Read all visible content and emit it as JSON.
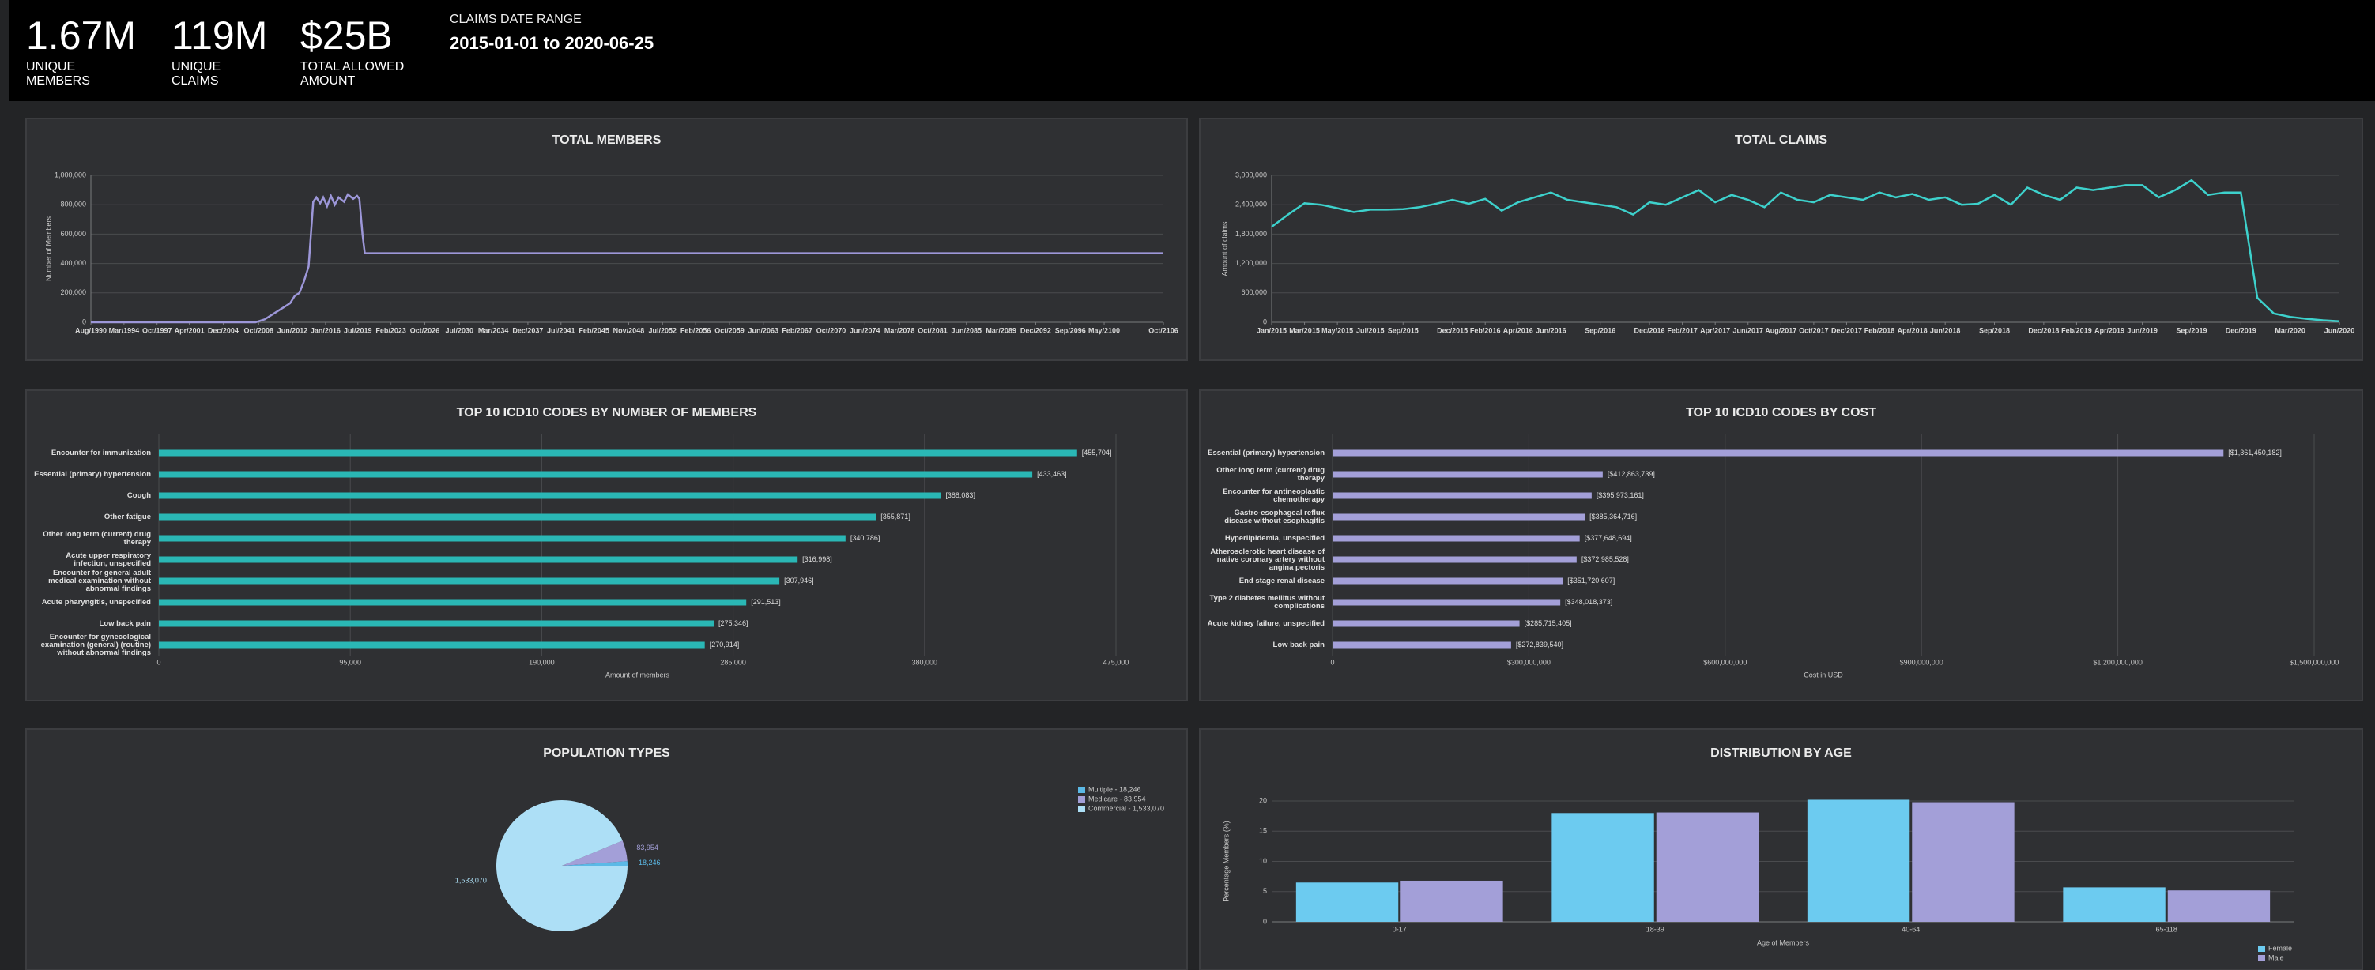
{
  "header": {
    "kpis": [
      {
        "value": "1.67M",
        "label": "UNIQUE MEMBERS"
      },
      {
        "value": "119M",
        "label": "UNIQUE CLAIMS"
      },
      {
        "value": "$25B",
        "label": "TOTAL ALLOWED AMOUNT"
      }
    ],
    "date_range": {
      "label": "CLAIMS DATE RANGE",
      "value": "2015-01-01 to 2020-06-25"
    }
  },
  "chart_data": [
    {
      "type": "line",
      "title": "TOTAL MEMBERS",
      "ylabel": "Number of Members",
      "color": "#9d97d9",
      "grid": true,
      "x": [
        "1990-08",
        "2008-06",
        "2009-06",
        "2010-06",
        "2011-06",
        "2012-03",
        "2012-09",
        "2013-03",
        "2013-09",
        "2014-03",
        "2014-06",
        "2014-09",
        "2015-01",
        "2015-06",
        "2015-10",
        "2016-03",
        "2016-08",
        "2017-01",
        "2017-06",
        "2018-01",
        "2018-06",
        "2019-01",
        "2019-06",
        "2019-09",
        "2020-01",
        "2020-04",
        "2106-10"
      ],
      "values": [
        0,
        0,
        20000,
        60000,
        100000,
        130000,
        180000,
        200000,
        280000,
        380000,
        600000,
        820000,
        850000,
        810000,
        850000,
        790000,
        860000,
        800000,
        850000,
        820000,
        870000,
        840000,
        860000,
        840000,
        600000,
        470000,
        470000
      ],
      "xlim": [
        "1990-08",
        "2106-10"
      ],
      "xticks": [
        {
          "value": "1990-08",
          "label": "Aug/1990"
        },
        {
          "value": "1994-03",
          "label": "Mar/1994"
        },
        {
          "value": "1997-10",
          "label": "Oct/1997"
        },
        {
          "value": "2001-04",
          "label": "Apr/2001"
        },
        {
          "value": "2004-12",
          "label": "Dec/2004"
        },
        {
          "value": "2008-10",
          "label": "Oct/2008"
        },
        {
          "value": "2012-06",
          "label": "Jun/2012"
        },
        {
          "value": "2016-01",
          "label": "Jan/2016"
        },
        {
          "value": "2019-07",
          "label": "Jul/2019"
        },
        {
          "value": "2023-02",
          "label": "Feb/2023"
        },
        {
          "value": "2026-10",
          "label": "Oct/2026"
        },
        {
          "value": "2030-07",
          "label": "Jul/2030"
        },
        {
          "value": "2034-03",
          "label": "Mar/2034"
        },
        {
          "value": "2037-12",
          "label": "Dec/2037"
        },
        {
          "value": "2041-07",
          "label": "Jul/2041"
        },
        {
          "value": "2045-02",
          "label": "Feb/2045"
        },
        {
          "value": "2048-11",
          "label": "Nov/2048"
        },
        {
          "value": "2052-07",
          "label": "Jul/2052"
        },
        {
          "value": "2056-02",
          "label": "Feb/2056"
        },
        {
          "value": "2059-10",
          "label": "Oct/2059"
        },
        {
          "value": "2063-06",
          "label": "Jun/2063"
        },
        {
          "value": "2067-02",
          "label": "Feb/2067"
        },
        {
          "value": "2070-10",
          "label": "Oct/2070"
        },
        {
          "value": "2074-06",
          "label": "Jun/2074"
        },
        {
          "value": "2078-03",
          "label": "Mar/2078"
        },
        {
          "value": "2081-10",
          "label": "Oct/2081"
        },
        {
          "value": "2085-06",
          "label": "Jun/2085"
        },
        {
          "value": "2089-03",
          "label": "Mar/2089"
        },
        {
          "value": "2092-12",
          "label": "Dec/2092"
        },
        {
          "value": "2096-09",
          "label": "Sep/2096"
        },
        {
          "value": "2100-05",
          "label": "May/2100"
        },
        {
          "value": "2106-10",
          "label": "Oct/2106"
        }
      ],
      "ylim": [
        0,
        1000000
      ],
      "yticks": [
        0,
        {
          "value": 200000,
          "label": "200,000"
        },
        {
          "value": 400000,
          "label": "400,000"
        },
        {
          "value": 600000,
          "label": "600,000"
        },
        {
          "value": 800000,
          "label": "800,000"
        },
        {
          "value": 1000000,
          "label": "1,000,000"
        }
      ]
    },
    {
      "type": "line",
      "title": "TOTAL CLAIMS",
      "ylabel": "Amount of claims",
      "color": "#3dd1cc",
      "grid": true,
      "x": [
        "2015-01",
        "2015-02",
        "2015-03",
        "2015-04",
        "2015-05",
        "2015-06",
        "2015-07",
        "2015-08",
        "2015-09",
        "2015-10",
        "2015-11",
        "2015-12",
        "2016-01",
        "2016-02",
        "2016-03",
        "2016-04",
        "2016-05",
        "2016-06",
        "2016-07",
        "2016-08",
        "2016-09",
        "2016-10",
        "2016-11",
        "2016-12",
        "2017-01",
        "2017-02",
        "2017-03",
        "2017-04",
        "2017-05",
        "2017-06",
        "2017-07",
        "2017-08",
        "2017-09",
        "2017-10",
        "2017-11",
        "2017-12",
        "2018-01",
        "2018-02",
        "2018-03",
        "2018-04",
        "2018-05",
        "2018-06",
        "2018-07",
        "2018-08",
        "2018-09",
        "2018-10",
        "2018-11",
        "2018-12",
        "2019-01",
        "2019-02",
        "2019-03",
        "2019-04",
        "2019-05",
        "2019-06",
        "2019-07",
        "2019-08",
        "2019-09",
        "2019-10",
        "2019-11",
        "2019-12",
        "2020-01",
        "2020-02",
        "2020-03",
        "2020-04",
        "2020-05",
        "2020-06"
      ],
      "values": [
        1950000,
        2200000,
        2430000,
        2400000,
        2330000,
        2250000,
        2300000,
        2300000,
        2310000,
        2350000,
        2420000,
        2500000,
        2420000,
        2520000,
        2280000,
        2450000,
        2550000,
        2650000,
        2500000,
        2450000,
        2400000,
        2350000,
        2200000,
        2450000,
        2400000,
        2550000,
        2700000,
        2450000,
        2600000,
        2500000,
        2350000,
        2650000,
        2500000,
        2450000,
        2600000,
        2550000,
        2500000,
        2650000,
        2550000,
        2620000,
        2500000,
        2550000,
        2400000,
        2420000,
        2600000,
        2400000,
        2750000,
        2600000,
        2500000,
        2750000,
        2700000,
        2750000,
        2800000,
        2800000,
        2550000,
        2700000,
        2900000,
        2600000,
        2650000,
        2650000,
        500000,
        180000,
        110000,
        70000,
        40000,
        20000
      ],
      "xlim": [
        "2015-01",
        "2020-06"
      ],
      "xticks": [
        {
          "value": "2015-01",
          "label": "Jan/2015"
        },
        {
          "value": "2015-03",
          "label": "Mar/2015"
        },
        {
          "value": "2015-05",
          "label": "May/2015"
        },
        {
          "value": "2015-07",
          "label": "Jul/2015"
        },
        {
          "value": "2015-09",
          "label": "Sep/2015"
        },
        {
          "value": "2015-12",
          "label": "Dec/2015"
        },
        {
          "value": "2016-02",
          "label": "Feb/2016"
        },
        {
          "value": "2016-04",
          "label": "Apr/2016"
        },
        {
          "value": "2016-06",
          "label": "Jun/2016"
        },
        {
          "value": "2016-09",
          "label": "Sep/2016"
        },
        {
          "value": "2016-12",
          "label": "Dec/2016"
        },
        {
          "value": "2017-02",
          "label": "Feb/2017"
        },
        {
          "value": "2017-04",
          "label": "Apr/2017"
        },
        {
          "value": "2017-06",
          "label": "Jun/2017"
        },
        {
          "value": "2017-08",
          "label": "Aug/2017"
        },
        {
          "value": "2017-10",
          "label": "Oct/2017"
        },
        {
          "value": "2017-12",
          "label": "Dec/2017"
        },
        {
          "value": "2018-02",
          "label": "Feb/2018"
        },
        {
          "value": "2018-04",
          "label": "Apr/2018"
        },
        {
          "value": "2018-06",
          "label": "Jun/2018"
        },
        {
          "value": "2018-09",
          "label": "Sep/2018"
        },
        {
          "value": "2018-12",
          "label": "Dec/2018"
        },
        {
          "value": "2019-02",
          "label": "Feb/2019"
        },
        {
          "value": "2019-04",
          "label": "Apr/2019"
        },
        {
          "value": "2019-06",
          "label": "Jun/2019"
        },
        {
          "value": "2019-09",
          "label": "Sep/2019"
        },
        {
          "value": "2019-12",
          "label": "Dec/2019"
        },
        {
          "value": "2020-03",
          "label": "Mar/2020"
        },
        {
          "value": "2020-06",
          "label": "Jun/2020"
        }
      ],
      "ylim": [
        0,
        3000000
      ],
      "yticks": [
        0,
        {
          "value": 600000,
          "label": "600,000"
        },
        {
          "value": 1200000,
          "label": "1,200,000"
        },
        {
          "value": 1800000,
          "label": "1,800,000"
        },
        {
          "value": 2400000,
          "label": "2,400,000"
        },
        {
          "value": 3000000,
          "label": "3,000,000"
        }
      ]
    },
    {
      "type": "bar",
      "orientation": "horizontal",
      "title": "TOP 10 ICD10 CODES BY NUMBER OF MEMBERS",
      "xlabel": "Amount of members",
      "color": "#2ab7b5",
      "grid": true,
      "categories": [
        "Encounter for immunization",
        "Essential (primary) hypertension",
        "Cough",
        "Other fatigue",
        "Other long term (current) drug therapy",
        "Acute upper respiratory infection, unspecified",
        "Encounter for general adult medical examination without abnormal findings",
        "Acute pharyngitis, unspecified",
        "Low back pain",
        "Encounter for gynecological examination (general) (routine) without abnormal findings"
      ],
      "values": [
        455704,
        433463,
        388083,
        355871,
        340786,
        316998,
        307946,
        291513,
        275346,
        270914
      ],
      "value_labels": [
        "[455,704]",
        "[433,463]",
        "[388,083]",
        "[355,871]",
        "[340,786]",
        "[316,998]",
        "[307,946]",
        "[291,513]",
        "[275,346]",
        "[270,914]"
      ],
      "xlim": [
        0,
        475000
      ],
      "xticks": [
        0,
        {
          "value": 95000,
          "label": "95,000"
        },
        {
          "value": 190000,
          "label": "190,000"
        },
        {
          "value": 285000,
          "label": "285,000"
        },
        {
          "value": 380000,
          "label": "380,000"
        },
        {
          "value": 475000,
          "label": "475,000"
        }
      ]
    },
    {
      "type": "bar",
      "orientation": "horizontal",
      "title": "TOP 10 ICD10 CODES BY COST",
      "xlabel": "Cost in USD",
      "color": "#a39fd8",
      "grid": true,
      "categories": [
        "Essential (primary) hypertension",
        "Other long term (current) drug therapy",
        "Encounter for antineoplastic chemotherapy",
        "Gastro-esophageal reflux disease without esophagitis",
        "Hyperlipidemia, unspecified",
        "Atherosclerotic heart disease of native coronary artery without angina pectoris",
        "End stage renal disease",
        "Type 2 diabetes mellitus without complications",
        "Acute kidney failure, unspecified",
        "Low back pain"
      ],
      "values": [
        1361450182,
        412863739,
        395973161,
        385364716,
        377648694,
        372985528,
        351720607,
        348018373,
        285715405,
        272839540
      ],
      "value_labels": [
        "[$1,361,450,182]",
        "[$412,863,739]",
        "[$395,973,161]",
        "[$385,364,716]",
        "[$377,648,694]",
        "[$372,985,528]",
        "[$351,720,607]",
        "[$348,018,373]",
        "[$285,715,405]",
        "[$272,839,540]"
      ],
      "xlim": [
        0,
        1500000000
      ],
      "xticks": [
        0,
        {
          "value": 300000000,
          "label": "$300,000,000"
        },
        {
          "value": 600000000,
          "label": "$600,000,000"
        },
        {
          "value": 900000000,
          "label": "$900,000,000"
        },
        {
          "value": 1200000000,
          "label": "$1,200,000,000"
        },
        {
          "value": 1500000000,
          "label": "$1,500,000,000"
        }
      ]
    },
    {
      "type": "pie",
      "title": "POPULATION TYPES",
      "legend": "top-right",
      "categories": [
        "Multiple - 18,246",
        "Medicare - 83,954",
        "Commercial - 1,533,070"
      ],
      "values": [
        18246,
        83954,
        1533070
      ],
      "value_labels": [
        "18,246",
        "83,954",
        "1,533,070"
      ],
      "colors": [
        "#5bb9e6",
        "#a39fd8",
        "#addff6"
      ]
    },
    {
      "type": "bar",
      "title": "DISTRIBUTION BY AGE",
      "xlabel": "Age of Members",
      "ylabel": "Percentage Members (%)",
      "grid": true,
      "legend": "bottom-right",
      "categories": [
        "0-17",
        "18-39",
        "40-64",
        "65-118"
      ],
      "series": [
        {
          "name": "Female",
          "color": "#6ccbf0",
          "values": [
            6.5,
            18,
            20.2,
            5.7
          ]
        },
        {
          "name": "Male",
          "color": "#a39fd8",
          "values": [
            6.8,
            18.1,
            19.8,
            5.2
          ]
        }
      ],
      "ylim": [
        0,
        20
      ],
      "yticks": [
        0,
        5,
        10,
        15,
        20
      ]
    }
  ]
}
